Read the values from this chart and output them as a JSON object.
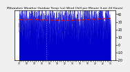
{
  "title": "Milwaukee Weather Outdoor Temp (vs) Wind Chill per Minute (Last 24 Hours)",
  "bg_color": "#f0f0f0",
  "plot_bg_color": "#ffffff",
  "blue_color": "#0000cc",
  "red_color": "#dd0000",
  "grid_color": "#c8c8c8",
  "vline_color": "#888888",
  "ylim": [
    -20,
    45
  ],
  "y_ticks": [
    40,
    30,
    20,
    10,
    0,
    -10,
    -20
  ],
  "n_points": 1440,
  "seed": 42,
  "title_fontsize": 3.2,
  "tick_fontsize": 3.5
}
